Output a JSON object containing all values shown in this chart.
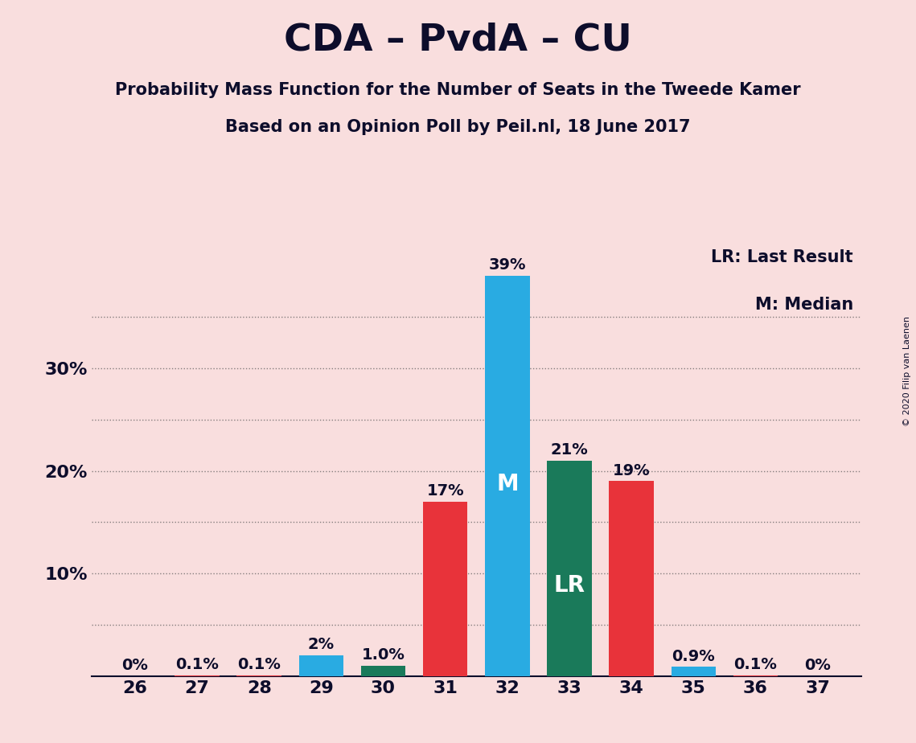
{
  "title": "CDA – PvdA – CU",
  "subtitle1": "Probability Mass Function for the Number of Seats in the Tweede Kamer",
  "subtitle2": "Based on an Opinion Poll by Peil.nl, 18 June 2017",
  "copyright": "© 2020 Filip van Laenen",
  "seats": [
    26,
    27,
    28,
    29,
    30,
    31,
    32,
    33,
    34,
    35,
    36,
    37
  ],
  "probabilities": [
    0.0,
    0.001,
    0.001,
    0.02,
    0.01,
    0.17,
    0.39,
    0.21,
    0.19,
    0.009,
    0.001,
    0.0
  ],
  "labels": [
    "0%",
    "0.1%",
    "0.1%",
    "2%",
    "1.0%",
    "17%",
    "39%",
    "21%",
    "19%",
    "0.9%",
    "0.1%",
    "0%"
  ],
  "bar_colors": [
    "#E8333A",
    "#E8333A",
    "#E8333A",
    "#29ABE2",
    "#1A7A5A",
    "#E8333A",
    "#29ABE2",
    "#1A7A5A",
    "#E8333A",
    "#29ABE2",
    "#E8333A",
    "#E8333A"
  ],
  "median_seat": 32,
  "lr_seat": 33,
  "background_color": "#F9DEDE",
  "legend_lr": "LR: Last Result",
  "legend_m": "M: Median",
  "ylim": [
    0,
    0.42
  ],
  "text_color": "#0D0D2B",
  "grid_color": "#555555",
  "bar_width": 0.72
}
